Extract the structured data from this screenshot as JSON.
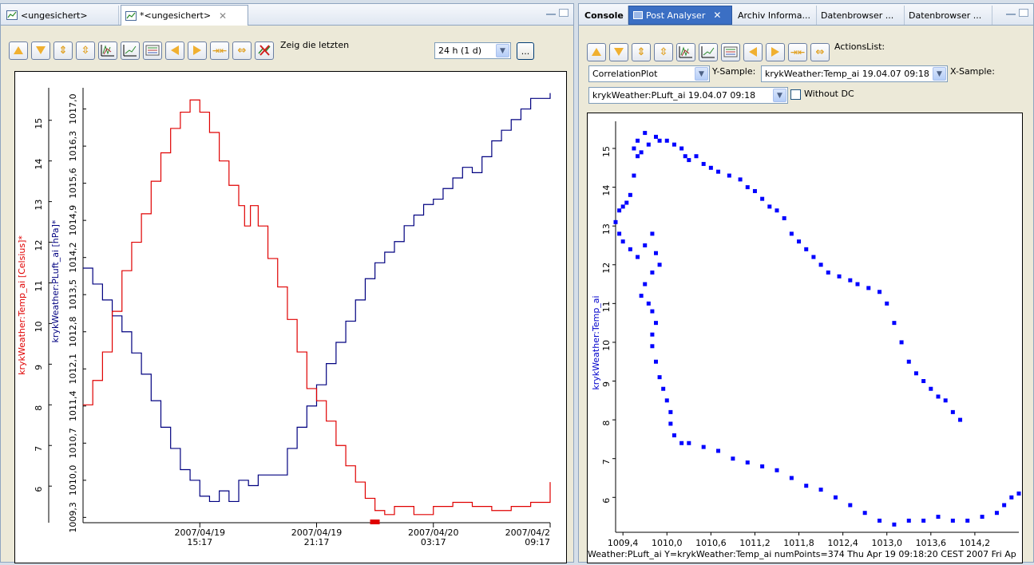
{
  "left": {
    "tabs": [
      {
        "label": "<ungesichert>",
        "active": false
      },
      {
        "label": "*<ungesichert>",
        "active": true
      }
    ],
    "toolbar": {
      "zeig_label": "Zeig die letzten",
      "range_value": "24 h (1 d)",
      "more_label": "..."
    },
    "chart": {
      "x_ticks": [
        {
          "line1": "2007/04/19",
          "line2": "15:17",
          "t": 6
        },
        {
          "line1": "2007/04/19",
          "line2": "21:17",
          "t": 12
        },
        {
          "line1": "2007/04/20",
          "line2": "03:17",
          "t": 18
        },
        {
          "line1": "2007/04/2",
          "line2": "09:17",
          "t": 24
        }
      ],
      "temp_axis": {
        "label": "krykWeather:Temp_ai [Celsius]*",
        "color": "#e00000",
        "min": 5.1,
        "max": 15.8,
        "ticks": [
          6,
          7,
          8,
          9,
          10,
          11,
          12,
          13,
          14,
          15
        ]
      },
      "press_axis": {
        "label": "krykWeather:PLuft_ai [hPa]*",
        "color": "#000080",
        "min": 1009.2,
        "max": 1017.4,
        "ticks": [
          "1009,3",
          "1010,0",
          "1010,7",
          "1011,4",
          "1012,1",
          "1012,8",
          "1013,5",
          "1014,2",
          "1014,9",
          "1015,6",
          "1016,3",
          "1017,0"
        ]
      },
      "temp_series": [
        [
          0,
          8.0
        ],
        [
          0.5,
          8.6
        ],
        [
          1,
          9.3
        ],
        [
          1.5,
          10.3
        ],
        [
          2,
          11.3
        ],
        [
          2.5,
          12.0
        ],
        [
          3,
          12.7
        ],
        [
          3.5,
          13.5
        ],
        [
          4,
          14.2
        ],
        [
          4.5,
          14.8
        ],
        [
          5,
          15.2
        ],
        [
          5.5,
          15.5
        ],
        [
          6,
          15.2
        ],
        [
          6.5,
          14.7
        ],
        [
          7,
          14.0
        ],
        [
          7.5,
          13.4
        ],
        [
          8,
          12.9
        ],
        [
          8.3,
          12.4
        ],
        [
          8.6,
          12.9
        ],
        [
          9,
          12.4
        ],
        [
          9.5,
          11.6
        ],
        [
          10,
          10.9
        ],
        [
          10.5,
          10.1
        ],
        [
          11,
          9.3
        ],
        [
          11.5,
          8.4
        ],
        [
          12,
          8.1
        ],
        [
          12.5,
          7.6
        ],
        [
          13,
          7.0
        ],
        [
          13.5,
          6.5
        ],
        [
          14,
          6.1
        ],
        [
          14.5,
          5.7
        ],
        [
          15,
          5.4
        ],
        [
          15.5,
          5.3
        ],
        [
          16,
          5.5
        ],
        [
          17,
          5.3
        ],
        [
          18,
          5.5
        ],
        [
          19,
          5.6
        ],
        [
          20,
          5.5
        ],
        [
          21,
          5.4
        ],
        [
          22,
          5.5
        ],
        [
          23,
          5.6
        ],
        [
          24,
          6.1
        ]
      ],
      "press_series": [
        [
          0,
          1014.0
        ],
        [
          0.5,
          1013.7
        ],
        [
          1,
          1013.4
        ],
        [
          1.5,
          1013.1
        ],
        [
          2,
          1012.8
        ],
        [
          2.5,
          1012.4
        ],
        [
          3,
          1012.0
        ],
        [
          3.5,
          1011.5
        ],
        [
          4,
          1011.0
        ],
        [
          4.5,
          1010.6
        ],
        [
          5,
          1010.2
        ],
        [
          5.5,
          1010.0
        ],
        [
          6,
          1009.7
        ],
        [
          6.5,
          1009.6
        ],
        [
          7,
          1009.8
        ],
        [
          7.5,
          1009.6
        ],
        [
          8,
          1010.0
        ],
        [
          8.5,
          1009.9
        ],
        [
          9,
          1010.1
        ],
        [
          9.5,
          1010.1
        ],
        [
          10,
          1010.1
        ],
        [
          10.5,
          1010.6
        ],
        [
          11,
          1011.0
        ],
        [
          11.5,
          1011.4
        ],
        [
          12,
          1011.8
        ],
        [
          12.5,
          1012.2
        ],
        [
          13,
          1012.6
        ],
        [
          13.5,
          1013.0
        ],
        [
          14,
          1013.4
        ],
        [
          14.5,
          1013.8
        ],
        [
          15,
          1014.1
        ],
        [
          15.5,
          1014.3
        ],
        [
          16,
          1014.5
        ],
        [
          16.5,
          1014.8
        ],
        [
          17,
          1015.0
        ],
        [
          17.5,
          1015.2
        ],
        [
          18,
          1015.3
        ],
        [
          18.5,
          1015.5
        ],
        [
          19,
          1015.7
        ],
        [
          19.5,
          1015.9
        ],
        [
          20,
          1015.8
        ],
        [
          20.5,
          1016.1
        ],
        [
          21,
          1016.4
        ],
        [
          21.5,
          1016.6
        ],
        [
          22,
          1016.8
        ],
        [
          22.5,
          1017.0
        ],
        [
          23,
          1017.2
        ],
        [
          24,
          1017.3
        ]
      ]
    }
  },
  "right": {
    "tabs": [
      {
        "label": "Console",
        "style": "plain"
      },
      {
        "label": "Post Analyser",
        "style": "blue"
      },
      {
        "label": "Archiv Informa...",
        "style": "plain"
      },
      {
        "label": "Datenbrowser ...",
        "style": "plain"
      },
      {
        "label": "Datenbrowser ...",
        "style": "plain"
      }
    ],
    "toolbar": {
      "actions_label": "ActionsList:",
      "plot_type": "CorrelationPlot",
      "ysample_label": "Y-Sample:",
      "ysample_value": "krykWeather:Temp_ai 19.04.07 09:18",
      "xsample_label": "X-Sample:",
      "xsample_value": "krykWeather:PLuft_ai 19.04.07 09:18",
      "without_dc_label": "Without DC"
    },
    "chart": {
      "ylabel": "krykWeather:Temp_ai",
      "xmin": 1009.3,
      "xmax": 1014.8,
      "ymin": 5.1,
      "ymax": 15.7,
      "x_ticks": [
        "1009,4",
        "1010,0",
        "1010,6",
        "1011,2",
        "1011,8",
        "1012,4",
        "1013,0",
        "1013,6",
        "1014,2"
      ],
      "x_tick_values": [
        1009.4,
        1010.0,
        1010.6,
        1011.2,
        1011.8,
        1012.4,
        1013.0,
        1013.6,
        1014.2
      ],
      "y_ticks": [
        6,
        7,
        8,
        9,
        10,
        11,
        12,
        13,
        14,
        15
      ],
      "footer": "Weather:PLuft_ai Y=krykWeather:Temp_ai numPoints=374 Thu Apr 19 09:18:20 CEST 2007 Fri Ap",
      "points": [
        [
          1009.35,
          13.4
        ],
        [
          1009.4,
          13.5
        ],
        [
          1009.45,
          13.6
        ],
        [
          1009.5,
          13.8
        ],
        [
          1009.55,
          14.3
        ],
        [
          1009.6,
          14.8
        ],
        [
          1009.55,
          15.0
        ],
        [
          1009.6,
          15.2
        ],
        [
          1009.7,
          15.4
        ],
        [
          1009.65,
          14.9
        ],
        [
          1009.75,
          15.1
        ],
        [
          1009.85,
          15.3
        ],
        [
          1009.9,
          15.2
        ],
        [
          1010.0,
          15.2
        ],
        [
          1010.1,
          15.1
        ],
        [
          1010.2,
          15.0
        ],
        [
          1010.25,
          14.8
        ],
        [
          1010.3,
          14.7
        ],
        [
          1010.4,
          14.8
        ],
        [
          1010.5,
          14.6
        ],
        [
          1010.6,
          14.5
        ],
        [
          1010.7,
          14.4
        ],
        [
          1010.85,
          14.3
        ],
        [
          1011.0,
          14.2
        ],
        [
          1011.1,
          14.0
        ],
        [
          1011.2,
          13.9
        ],
        [
          1011.3,
          13.7
        ],
        [
          1011.4,
          13.5
        ],
        [
          1011.5,
          13.4
        ],
        [
          1011.6,
          13.2
        ],
        [
          1011.7,
          12.8
        ],
        [
          1011.8,
          12.6
        ],
        [
          1011.9,
          12.4
        ],
        [
          1012.0,
          12.2
        ],
        [
          1012.1,
          12.0
        ],
        [
          1012.2,
          11.8
        ],
        [
          1012.35,
          11.7
        ],
        [
          1012.5,
          11.6
        ],
        [
          1012.6,
          11.5
        ],
        [
          1012.75,
          11.4
        ],
        [
          1012.9,
          11.3
        ],
        [
          1013.0,
          11.0
        ],
        [
          1013.1,
          10.5
        ],
        [
          1013.2,
          10.0
        ],
        [
          1013.3,
          9.5
        ],
        [
          1013.4,
          9.2
        ],
        [
          1013.5,
          9.0
        ],
        [
          1013.6,
          8.8
        ],
        [
          1013.7,
          8.6
        ],
        [
          1013.8,
          8.5
        ],
        [
          1013.9,
          8.2
        ],
        [
          1014.0,
          8.0
        ],
        [
          1009.3,
          13.1
        ],
        [
          1009.35,
          12.8
        ],
        [
          1009.4,
          12.6
        ],
        [
          1009.5,
          12.4
        ],
        [
          1009.6,
          12.2
        ],
        [
          1009.7,
          12.5
        ],
        [
          1009.8,
          12.8
        ],
        [
          1009.85,
          12.3
        ],
        [
          1009.9,
          12.0
        ],
        [
          1009.8,
          11.8
        ],
        [
          1009.7,
          11.5
        ],
        [
          1009.65,
          11.2
        ],
        [
          1009.75,
          11.0
        ],
        [
          1009.8,
          10.8
        ],
        [
          1009.85,
          10.5
        ],
        [
          1009.8,
          10.2
        ],
        [
          1009.8,
          9.9
        ],
        [
          1009.85,
          9.5
        ],
        [
          1009.9,
          9.1
        ],
        [
          1009.95,
          8.8
        ],
        [
          1010.0,
          8.5
        ],
        [
          1010.05,
          8.2
        ],
        [
          1010.05,
          7.9
        ],
        [
          1010.1,
          7.6
        ],
        [
          1010.2,
          7.4
        ],
        [
          1010.3,
          7.4
        ],
        [
          1010.5,
          7.3
        ],
        [
          1010.7,
          7.2
        ],
        [
          1010.9,
          7.0
        ],
        [
          1011.1,
          6.9
        ],
        [
          1011.3,
          6.8
        ],
        [
          1011.5,
          6.7
        ],
        [
          1011.7,
          6.5
        ],
        [
          1011.9,
          6.3
        ],
        [
          1012.1,
          6.2
        ],
        [
          1012.3,
          6.0
        ],
        [
          1012.5,
          5.8
        ],
        [
          1012.7,
          5.6
        ],
        [
          1012.9,
          5.4
        ],
        [
          1013.1,
          5.3
        ],
        [
          1013.3,
          5.4
        ],
        [
          1013.5,
          5.4
        ],
        [
          1013.7,
          5.5
        ],
        [
          1013.9,
          5.4
        ],
        [
          1014.1,
          5.4
        ],
        [
          1014.3,
          5.5
        ],
        [
          1014.5,
          5.6
        ],
        [
          1014.6,
          5.8
        ],
        [
          1014.7,
          6.0
        ],
        [
          1014.8,
          6.1
        ]
      ]
    }
  }
}
